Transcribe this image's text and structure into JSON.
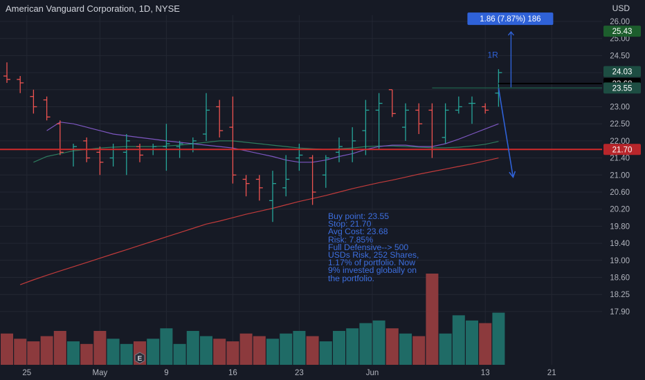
{
  "header": {
    "title": "American Vanguard Corporation, 1D, NYSE",
    "currency": "USD"
  },
  "colors": {
    "background": "#161a25",
    "grid": "#232733",
    "text": "#b2b5be",
    "up": "#26a69a",
    "down": "#ef5350",
    "volume_up": "#1f6b66",
    "volume_down": "#8c3a3d",
    "ma_fast": "#7e57c2",
    "ma_mid": "#2e7d5f",
    "ma_slow": "#c23b3b",
    "annotation": "#2f62d8",
    "stop_line": "#d12b2b",
    "avg_cost_line": "#000000",
    "buy_line": "#1f5d4a",
    "green_badge": "#1d5e2d",
    "red_badge": "#b8262b",
    "black_badge": "#000000",
    "dark_badge": "#1d4d42"
  },
  "chart_data": {
    "type": "candlestick",
    "x_ticks": [
      {
        "bar": 1.5,
        "label": "25"
      },
      {
        "bar": 7,
        "label": "May"
      },
      {
        "bar": 12,
        "label": "9"
      },
      {
        "bar": 17,
        "label": "16"
      },
      {
        "bar": 22,
        "label": "23"
      },
      {
        "bar": 27.5,
        "label": "Jun"
      },
      {
        "bar": 36,
        "label": "13"
      },
      {
        "bar": 41,
        "label": "21"
      }
    ],
    "y_ticks": [
      26.0,
      25.0,
      24.5,
      24.0,
      23.5,
      23.0,
      22.5,
      22.0,
      21.4,
      21.0,
      20.6,
      20.2,
      19.8,
      19.4,
      19.0,
      18.6,
      18.25,
      17.9
    ],
    "bars": [
      {
        "o": 23.9,
        "h": 24.3,
        "l": 23.7,
        "c": 23.8,
        "v": 12
      },
      {
        "o": 23.8,
        "h": 23.9,
        "l": 23.4,
        "c": 23.7,
        "v": 10
      },
      {
        "o": 23.3,
        "h": 23.5,
        "l": 22.8,
        "c": 23.0,
        "v": 9
      },
      {
        "o": 23.2,
        "h": 23.3,
        "l": 22.6,
        "c": 22.7,
        "v": 11
      },
      {
        "o": 22.5,
        "h": 22.6,
        "l": 21.5,
        "c": 21.6,
        "v": 13
      },
      {
        "o": 21.7,
        "h": 21.9,
        "l": 21.2,
        "c": 21.8,
        "v": 9
      },
      {
        "o": 22.0,
        "h": 22.1,
        "l": 21.3,
        "c": 21.4,
        "v": 8
      },
      {
        "o": 21.6,
        "h": 21.8,
        "l": 21.0,
        "c": 21.3,
        "v": 13
      },
      {
        "o": 21.4,
        "h": 21.9,
        "l": 21.2,
        "c": 21.7,
        "v": 10
      },
      {
        "o": 21.6,
        "h": 22.2,
        "l": 21.0,
        "c": 22.0,
        "v": 8
      },
      {
        "o": 21.8,
        "h": 21.9,
        "l": 21.3,
        "c": 21.5,
        "v": 9
      },
      {
        "o": 21.7,
        "h": 21.9,
        "l": 21.5,
        "c": 21.8,
        "v": 10
      },
      {
        "o": 21.8,
        "h": 22.5,
        "l": 21.1,
        "c": 21.9,
        "v": 14
      },
      {
        "o": 21.8,
        "h": 22.0,
        "l": 21.4,
        "c": 21.9,
        "v": 8
      },
      {
        "o": 21.9,
        "h": 22.1,
        "l": 21.6,
        "c": 22.0,
        "v": 13
      },
      {
        "o": 22.2,
        "h": 23.4,
        "l": 22.0,
        "c": 22.9,
        "v": 11
      },
      {
        "o": 23.0,
        "h": 23.2,
        "l": 22.1,
        "c": 22.3,
        "v": 10
      },
      {
        "o": 22.4,
        "h": 23.3,
        "l": 20.8,
        "c": 21.0,
        "v": 9
      },
      {
        "o": 20.9,
        "h": 21.0,
        "l": 20.5,
        "c": 20.8,
        "v": 12
      },
      {
        "o": 20.9,
        "h": 21.0,
        "l": 20.4,
        "c": 20.7,
        "v": 11
      },
      {
        "o": 20.4,
        "h": 21.1,
        "l": 19.9,
        "c": 20.8,
        "v": 10
      },
      {
        "o": 20.7,
        "h": 21.5,
        "l": 20.5,
        "c": 20.9,
        "v": 12
      },
      {
        "o": 21.4,
        "h": 21.9,
        "l": 21.1,
        "c": 21.5,
        "v": 13
      },
      {
        "o": 21.4,
        "h": 21.5,
        "l": 20.3,
        "c": 20.6,
        "v": 11
      },
      {
        "o": 21.0,
        "h": 21.5,
        "l": 20.7,
        "c": 21.4,
        "v": 9
      },
      {
        "o": 21.6,
        "h": 22.1,
        "l": 21.3,
        "c": 21.8,
        "v": 13
      },
      {
        "o": 21.7,
        "h": 22.4,
        "l": 21.3,
        "c": 22.0,
        "v": 14
      },
      {
        "o": 22.3,
        "h": 23.2,
        "l": 21.5,
        "c": 22.9,
        "v": 16
      },
      {
        "o": 22.9,
        "h": 23.4,
        "l": 21.7,
        "c": 23.1,
        "v": 17
      },
      {
        "o": 23.5,
        "h": 23.5,
        "l": 22.7,
        "c": 22.8,
        "v": 14
      },
      {
        "o": 22.4,
        "h": 23.1,
        "l": 22.0,
        "c": 22.9,
        "v": 12
      },
      {
        "o": 22.9,
        "h": 23.1,
        "l": 22.2,
        "c": 22.5,
        "v": 11
      },
      {
        "o": 22.9,
        "h": 23.1,
        "l": 21.4,
        "c": 21.7,
        "v": 35
      },
      {
        "o": 22.1,
        "h": 23.1,
        "l": 21.9,
        "c": 22.9,
        "v": 12
      },
      {
        "o": 22.9,
        "h": 23.3,
        "l": 22.8,
        "c": 23.0,
        "v": 19
      },
      {
        "o": 23.1,
        "h": 23.3,
        "l": 22.5,
        "c": 23.1,
        "v": 17
      },
      {
        "o": 23.0,
        "h": 23.1,
        "l": 22.8,
        "c": 22.9,
        "v": 16
      },
      {
        "o": 23.4,
        "h": 24.1,
        "l": 23.0,
        "c": 24.0,
        "v": 20
      }
    ],
    "ma_fast": [
      null,
      null,
      null,
      22.3,
      22.55,
      22.5,
      22.4,
      22.3,
      22.2,
      22.15,
      22.1,
      22.05,
      22.0,
      21.95,
      21.9,
      21.85,
      21.8,
      21.75,
      21.65,
      21.55,
      21.45,
      21.35,
      21.3,
      21.3,
      21.35,
      21.45,
      21.55,
      21.7,
      21.8,
      21.85,
      21.85,
      21.8,
      21.8,
      21.9,
      22.05,
      22.2,
      22.35,
      22.5
    ],
    "ma_mid": [
      null,
      null,
      21.3,
      21.45,
      21.55,
      21.65,
      21.7,
      21.75,
      21.78,
      21.8,
      21.8,
      21.8,
      21.82,
      21.85,
      21.9,
      21.95,
      22.0,
      22.0,
      21.95,
      21.9,
      21.85,
      21.8,
      21.75,
      21.72,
      21.7,
      21.72,
      21.75,
      21.8,
      21.82,
      21.82,
      21.8,
      21.78,
      21.76,
      21.76,
      21.78,
      21.82,
      21.88,
      21.98
    ],
    "ma_slow": [
      null,
      18.45,
      18.55,
      18.65,
      18.75,
      18.85,
      18.95,
      19.05,
      19.15,
      19.25,
      19.35,
      19.45,
      19.55,
      19.65,
      19.75,
      19.85,
      19.92,
      20.0,
      20.08,
      20.15,
      20.22,
      20.3,
      20.38,
      20.45,
      20.52,
      20.6,
      20.68,
      20.75,
      20.82,
      20.88,
      20.95,
      21.02,
      21.08,
      21.14,
      21.2,
      21.26,
      21.33,
      21.4
    ],
    "levels": [
      {
        "name": "stop",
        "price": 21.7,
        "label": "21.70"
      },
      {
        "name": "avg-cost",
        "price": 23.68,
        "label": "23.68"
      },
      {
        "name": "buy-point",
        "price": 23.55,
        "label": "23.55"
      }
    ],
    "price_badges": [
      {
        "name": "target",
        "price": 25.43,
        "label": "25.43"
      },
      {
        "name": "last",
        "price": 24.03,
        "label": "24.03"
      }
    ],
    "measure": {
      "label": "1.86 (7.87%) 186",
      "from": 23.57,
      "to": 25.43,
      "r_label": "1R"
    },
    "stop_arrow": {
      "from_price": 23.55,
      "to_price": 20.95
    },
    "note": [
      "Buy point: 23.55",
      "Stop: 21.70",
      "Avg Cost: 23.68",
      "Risk: 7.85%",
      "Full Defensive--> 500",
      "USDs Risk, 252 Shares,",
      "1.17% of portfolio. Now",
      "9% invested globally on",
      "the portfolio."
    ],
    "earnings_marker": {
      "bar": 10,
      "label": "E"
    }
  }
}
